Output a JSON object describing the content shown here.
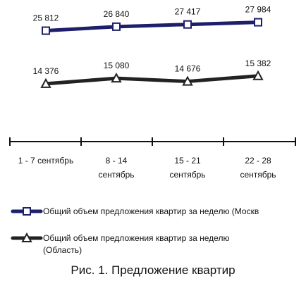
{
  "chart_data": {
    "type": "line",
    "categories": [
      [
        "1 - 7 сентябрь"
      ],
      [
        "8 - 14",
        "сентябрь"
      ],
      [
        "15 - 21",
        "сентябрь"
      ],
      [
        "22 - 28",
        "сентябрь"
      ]
    ],
    "series": [
      {
        "name": "Общий объем предложения квартир за неделю (Москв",
        "values": [
          25812,
          26840,
          27417,
          27984
        ],
        "value_labels": [
          "25 812",
          "26 840",
          "27 417",
          "27 984"
        ],
        "marker": "square",
        "color": "#1d1f6b"
      },
      {
        "name": "Общий объем предложения квартир за неделю (Область)",
        "values": [
          14376,
          15080,
          14676,
          15382
        ],
        "value_labels": [
          "14 376",
          "15 080",
          "14 676",
          "15 382"
        ],
        "marker": "triangle",
        "color": "#222222"
      }
    ],
    "legend_placement": "bottom",
    "grid": false
  },
  "legend": {
    "items": [
      {
        "lines": [
          "Общий объем предложения квартир за неделю (Москв"
        ]
      },
      {
        "lines": [
          "Общий объем предложения квартир за неделю",
          "(Область)"
        ]
      }
    ]
  },
  "caption": "Рис. 1. Предложение квартир"
}
